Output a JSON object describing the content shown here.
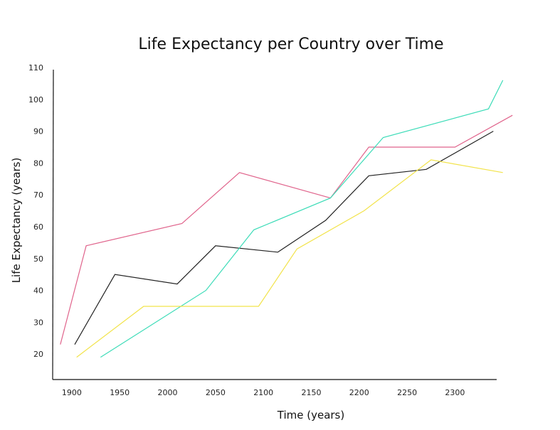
{
  "chart_data": {
    "type": "line",
    "title": "Life Expectancy per Country over Time",
    "xlabel": "Time (years)",
    "ylabel": "Life Expectancy (years)",
    "xlim": [
      1880,
      2345
    ],
    "ylim": [
      12,
      112
    ],
    "x_ticks": [
      1900,
      1950,
      2000,
      2050,
      2100,
      2150,
      2200,
      2250,
      2300
    ],
    "y_ticks": [
      20,
      30,
      40,
      50,
      60,
      70,
      80,
      90,
      100,
      110
    ],
    "grid": false,
    "legend": "none",
    "series": [
      {
        "color": "#e0648c",
        "points": [
          [
            1888,
            23
          ],
          [
            1915,
            54
          ],
          [
            2015,
            61
          ],
          [
            2075,
            77
          ],
          [
            2170,
            69
          ],
          [
            2210,
            85
          ],
          [
            2300,
            85
          ],
          [
            2360,
            95
          ]
        ]
      },
      {
        "color": "#222222",
        "points": [
          [
            1903,
            23
          ],
          [
            1945,
            45
          ],
          [
            2010,
            42
          ],
          [
            2050,
            54
          ],
          [
            2115,
            52
          ],
          [
            2165,
            62
          ],
          [
            2210,
            76
          ],
          [
            2270,
            78
          ],
          [
            2340,
            90
          ]
        ]
      },
      {
        "color": "#3ddcb8",
        "points": [
          [
            1930,
            19
          ],
          [
            2040,
            40
          ],
          [
            2090,
            59
          ],
          [
            2170,
            69
          ],
          [
            2225,
            88
          ],
          [
            2335,
            97
          ],
          [
            2350,
            106
          ]
        ]
      },
      {
        "color": "#f2e34a",
        "points": [
          [
            1905,
            19
          ],
          [
            1975,
            35
          ],
          [
            2095,
            35
          ],
          [
            2135,
            53
          ],
          [
            2205,
            65
          ],
          [
            2275,
            81
          ],
          [
            2350,
            77
          ]
        ]
      }
    ]
  }
}
